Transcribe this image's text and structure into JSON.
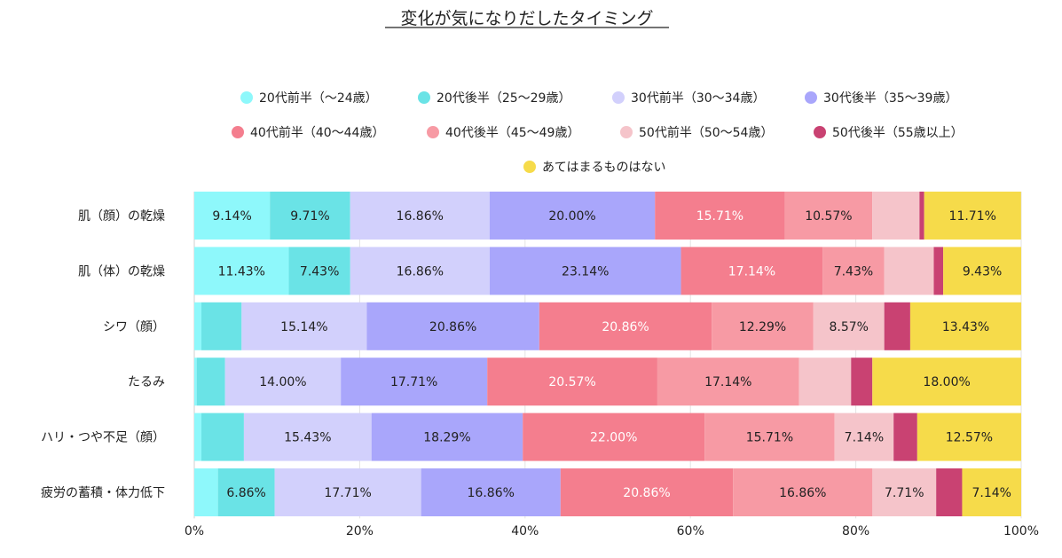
{
  "chart_data": {
    "type": "bar",
    "orientation": "horizontal",
    "stacked": true,
    "percent": true,
    "title": "変化が気になりだしたタイミング",
    "xlabel": "",
    "ylabel": "",
    "xlim": [
      0,
      100
    ],
    "xticks": [
      "0%",
      "20%",
      "40%",
      "60%",
      "80%",
      "100%"
    ],
    "grid": true,
    "legend_position": "top",
    "categories": [
      "肌（顔）の乾燥",
      "肌（体）の乾燥",
      "シワ（顔）",
      "たるみ",
      "ハリ・つや不足（顔）",
      "疲労の蓄積・体力低下"
    ],
    "series": [
      {
        "name": "20代前半（〜24歳）",
        "color": "#8ef8fb",
        "text_color": "#222222",
        "values": [
          9.14,
          11.43,
          0.86,
          0.29,
          0.86,
          2.86
        ]
      },
      {
        "name": "20代後半（25〜29歳）",
        "color": "#6ae3e6",
        "text_color": "#222222",
        "values": [
          9.71,
          7.43,
          4.86,
          3.43,
          5.14,
          6.86
        ]
      },
      {
        "name": "30代前半（30〜34歳）",
        "color": "#d2d0fc",
        "text_color": "#222222",
        "values": [
          16.86,
          16.86,
          15.14,
          14.0,
          15.43,
          17.71
        ]
      },
      {
        "name": "30代後半（35〜39歳）",
        "color": "#a9a6fb",
        "text_color": "#222222",
        "values": [
          20.0,
          23.14,
          20.86,
          17.71,
          18.29,
          16.86
        ]
      },
      {
        "name": "40代前半（40〜44歳）",
        "color": "#f47e8e",
        "text_color": "#ffffff",
        "values": [
          15.71,
          17.14,
          20.86,
          20.57,
          22.0,
          20.86
        ]
      },
      {
        "name": "40代後半（45〜49歳）",
        "color": "#f79aa4",
        "text_color": "#222222",
        "values": [
          10.57,
          7.43,
          12.29,
          17.14,
          15.71,
          16.86
        ]
      },
      {
        "name": "50代前半（50〜54歳）",
        "color": "#f5c4ca",
        "text_color": "#222222",
        "values": [
          5.71,
          6.0,
          8.57,
          6.29,
          7.14,
          7.71
        ]
      },
      {
        "name": "50代後半（55歳以上）",
        "color": "#c94272",
        "text_color": "#ffffff",
        "values": [
          0.57,
          1.14,
          3.14,
          2.57,
          2.86,
          3.14
        ]
      },
      {
        "name": "あてはまるものはない",
        "color": "#f6db4a",
        "text_color": "#222222",
        "values": [
          11.71,
          9.43,
          13.43,
          18.0,
          12.57,
          7.14
        ]
      }
    ],
    "data_labels": [
      [
        "9.14%",
        "9.71%",
        "16.86%",
        "20.00%",
        "15.71%",
        "10.57%",
        "",
        "",
        "11.71%"
      ],
      [
        "11.43%",
        "7.43%",
        "16.86%",
        "23.14%",
        "17.14%",
        "7.43%",
        "",
        "",
        "9.43%"
      ],
      [
        "",
        "",
        "15.14%",
        "20.86%",
        "20.86%",
        "12.29%",
        "8.57%",
        "",
        "13.43%"
      ],
      [
        "",
        "",
        "14.00%",
        "17.71%",
        "20.57%",
        "17.14%",
        "",
        "",
        "18.00%"
      ],
      [
        "",
        "",
        "15.43%",
        "18.29%",
        "22.00%",
        "15.71%",
        "7.14%",
        "",
        "12.57%"
      ],
      [
        "",
        "6.86%",
        "17.71%",
        "16.86%",
        "20.86%",
        "16.86%",
        "7.71%",
        "",
        "7.14%"
      ]
    ]
  }
}
